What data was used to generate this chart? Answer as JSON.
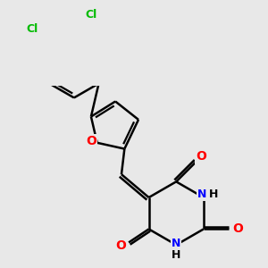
{
  "bg_color": "#e8e8e8",
  "bond_color": "#000000",
  "oxygen_color": "#ff0000",
  "nitrogen_color": "#0000ff",
  "chlorine_color": "#00bb00",
  "bond_width": 1.8,
  "font_size": 10,
  "fig_width": 3.0,
  "fig_height": 3.0,
  "dpi": 100,
  "xlim": [
    0,
    300
  ],
  "ylim": [
    0,
    300
  ]
}
